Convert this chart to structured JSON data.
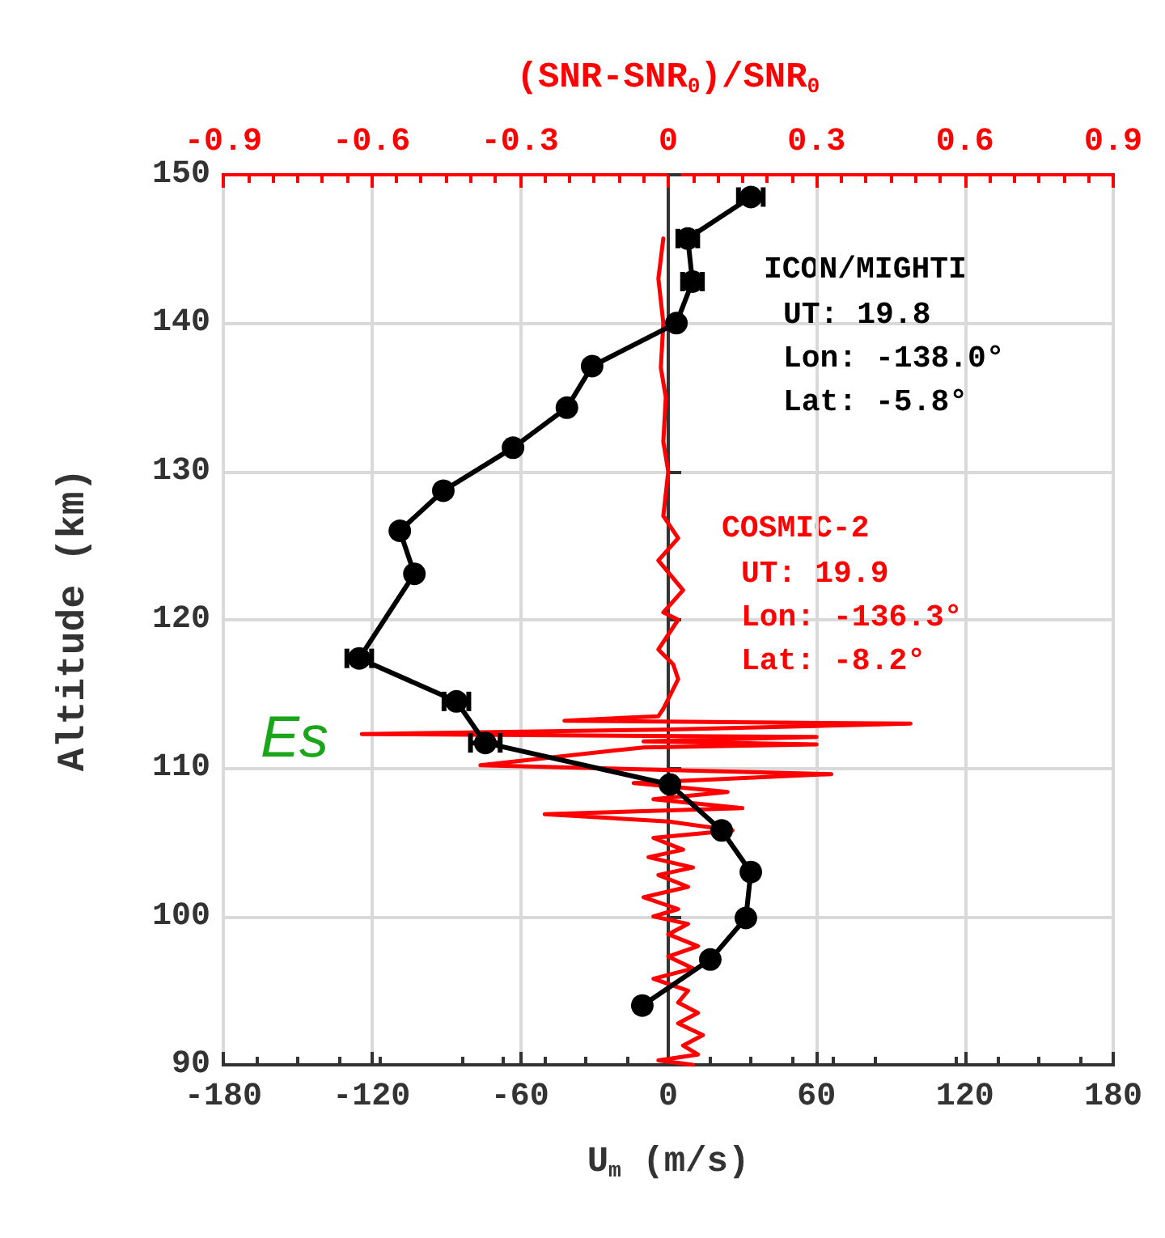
{
  "chart_data": {
    "type": "line",
    "xlabel": "U$_{m}$ (m/s)",
    "x2label": "(SNR-SNR$_{0}$)/SNR$_{0}$",
    "ylabel": "Altitude (km)",
    "xlim": [
      -180,
      180
    ],
    "xticks": [
      -180,
      -120,
      -60,
      0,
      60,
      120,
      180
    ],
    "x2lim": [
      -0.9,
      0.9
    ],
    "x2ticks": [
      -0.9,
      -0.6,
      -0.3,
      0,
      0.3,
      0.6,
      0.9
    ],
    "ylim": [
      90,
      150
    ],
    "yticks": [
      90,
      100,
      110,
      120,
      130,
      140,
      150
    ],
    "grid": true,
    "legend": "right",
    "line_style": "solid",
    "series": [
      {
        "name": "ICON/MIGHTI",
        "color": "#000000",
        "marker": "circle",
        "x": [
          33.4,
          7.9,
          9.8,
          3.3,
          -30.8,
          -41,
          -62.8,
          -91,
          -108.6,
          -102.7,
          -125,
          -85.7,
          -74,
          0.7,
          21.6,
          33.4,
          31.4,
          17,
          -10.5
        ],
        "values": [
          148.5,
          145.7,
          142.8,
          140.0,
          137.1,
          134.3,
          131.6,
          128.7,
          126.0,
          123.1,
          117.4,
          114.5,
          111.7,
          108.9,
          105.8,
          103.0,
          99.9,
          97.1,
          94.0
        ],
        "xerrors": [
          5,
          4,
          4,
          null,
          null,
          null,
          null,
          null,
          null,
          null,
          5,
          5,
          6,
          null,
          null,
          null,
          null,
          null,
          null
        ]
      },
      {
        "name": "COSMIC-2",
        "color": "#ff0000",
        "axis": "x2",
        "marker": "none",
        "x": [
          -0.01,
          -0.02,
          -0.01,
          -0.015,
          -0.005,
          -0.01,
          0.0,
          -0.01,
          0.02,
          -0.02,
          0.03,
          -0.01,
          0.02,
          -0.02,
          0.01,
          0.02,
          -0.01,
          -0.02,
          -0.21,
          0.49,
          -0.01,
          -0.62,
          0.3,
          -0.05,
          0.3,
          -0.05,
          -0.38,
          0.33,
          -0.07,
          0.12,
          -0.03,
          0.15,
          -0.25,
          0.0,
          0.13,
          -0.03,
          0.03,
          -0.04,
          0.05,
          -0.02,
          0.04,
          -0.05,
          0.02,
          -0.03,
          0.04,
          0.0,
          0.06,
          0.0,
          0.05,
          -0.03,
          0.04,
          0.02,
          0.06,
          0.02,
          0.07,
          0.03,
          0.06,
          -0.02,
          0.05
        ],
        "values": [
          145.7,
          143,
          140,
          137,
          135,
          132,
          130,
          127,
          125.5,
          124,
          122,
          120.5,
          120,
          118,
          117,
          116,
          114,
          113.5,
          113.2,
          113.0,
          112.6,
          112.3,
          112.1,
          111.8,
          111.6,
          111.4,
          110.2,
          109.6,
          109.0,
          108.4,
          107.9,
          107.3,
          106.9,
          106.4,
          105.8,
          105.3,
          104.5,
          104,
          103.3,
          102.8,
          102,
          101.3,
          100.5,
          100,
          99.5,
          98.8,
          98,
          97.3,
          96.5,
          95.8,
          95,
          94.2,
          93.5,
          92.8,
          92,
          91.3,
          90.7,
          90.3,
          90
        ]
      }
    ],
    "annotations": [
      "UT: 19.8\nLon: -138.0°\nLat: -5.8°",
      "UT: 19.9\nLon: -136.3°\nLat: -8.2°",
      "Es"
    ]
  }
}
